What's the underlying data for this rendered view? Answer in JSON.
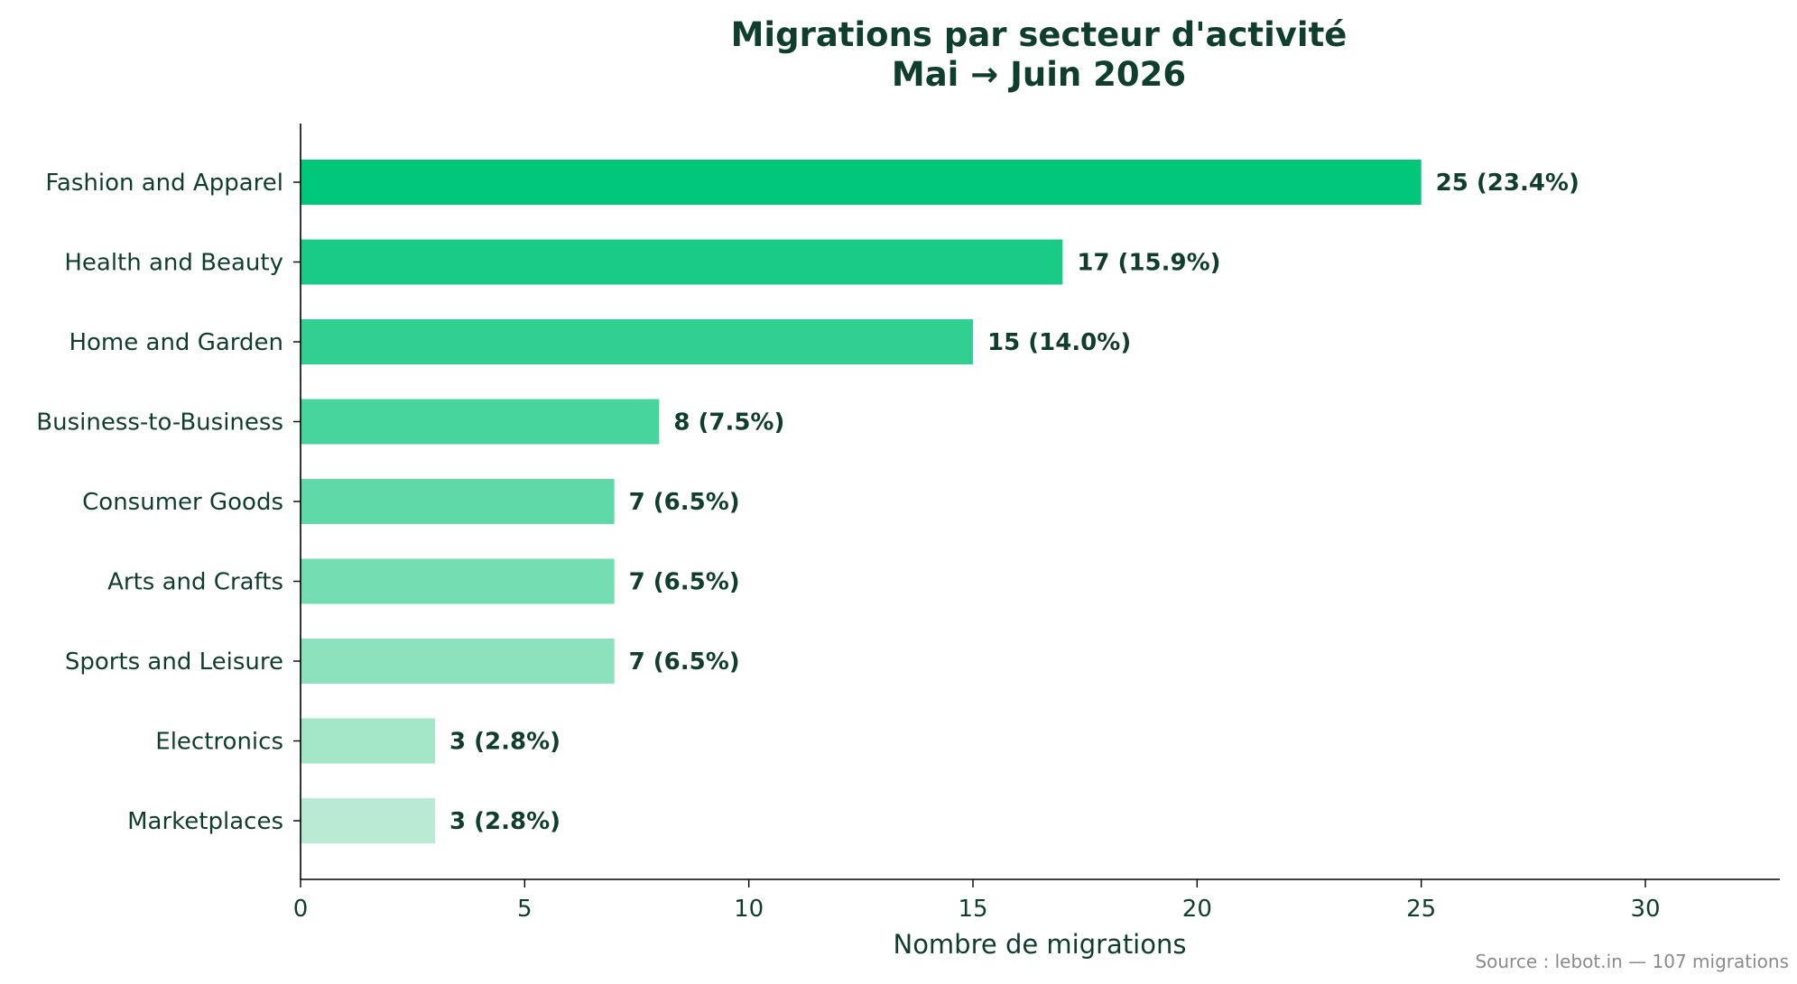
{
  "chart_data": {
    "type": "bar",
    "orientation": "horizontal",
    "title_lines": [
      "Migrations par secteur d'activité",
      "Mai → Juin 2026"
    ],
    "xlabel": "Nombre de migrations",
    "ylabel": "",
    "xlim": [
      0,
      33
    ],
    "xticks": [
      0,
      5,
      10,
      15,
      20,
      25,
      30
    ],
    "grid": false,
    "legend": "none",
    "categories": [
      "Fashion and Apparel",
      "Health and Beauty",
      "Home and Garden",
      "Business-to-Business",
      "Consumer Goods",
      "Arts and Crafts",
      "Sports and Leisure",
      "Electronics",
      "Marketplaces"
    ],
    "values": [
      25,
      17,
      15,
      8,
      7,
      7,
      7,
      3,
      3
    ],
    "value_labels": [
      "25 (23.4%)",
      "17 (15.9%)",
      "15 (14.0%)",
      "8 (7.5%)",
      "7 (6.5%)",
      "7 (6.5%)",
      "7 (6.5%)",
      "3 (2.8%)",
      "3 (2.8%)"
    ],
    "bar_colors": [
      "#00c77a",
      "#1acb86",
      "#31d092",
      "#48d59d",
      "#5fd9a8",
      "#74ddb1",
      "#8be2bc",
      "#a4e6c8",
      "#b9ead4"
    ],
    "text_color": "#0f3d2e",
    "source_note": "Source : lebot.in — 107 migrations"
  }
}
